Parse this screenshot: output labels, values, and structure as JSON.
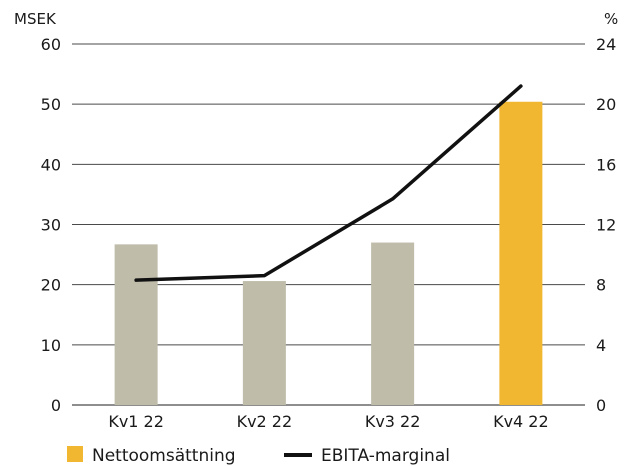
{
  "chart_data": {
    "type": "bar",
    "categories": [
      "Kv1 22",
      "Kv2 22",
      "Kv3 22",
      "Kv4 22"
    ],
    "series": [
      {
        "name": "Nettoomsättning",
        "type": "bar",
        "axis": "left",
        "values": [
          26.7,
          20.6,
          27.0,
          50.4
        ],
        "colors": [
          "#bfbcaa",
          "#bfbcaa",
          "#bfbcaa",
          "#f2b731"
        ]
      },
      {
        "name": "EBITA-marginal",
        "type": "line",
        "axis": "right",
        "values": [
          8.3,
          8.6,
          13.7,
          21.2
        ],
        "color": "#111111"
      }
    ],
    "y_left": {
      "unit": "MSEK",
      "ticks": [
        "0",
        "10",
        "20",
        "30",
        "40",
        "50",
        "60"
      ],
      "ylim": [
        0,
        60
      ]
    },
    "y_right": {
      "unit": "%",
      "ticks": [
        "0",
        "4",
        "8",
        "12",
        "16",
        "20",
        "24"
      ],
      "ylim": [
        0,
        24
      ]
    },
    "grid": true,
    "legend_position": "bottom-left"
  }
}
